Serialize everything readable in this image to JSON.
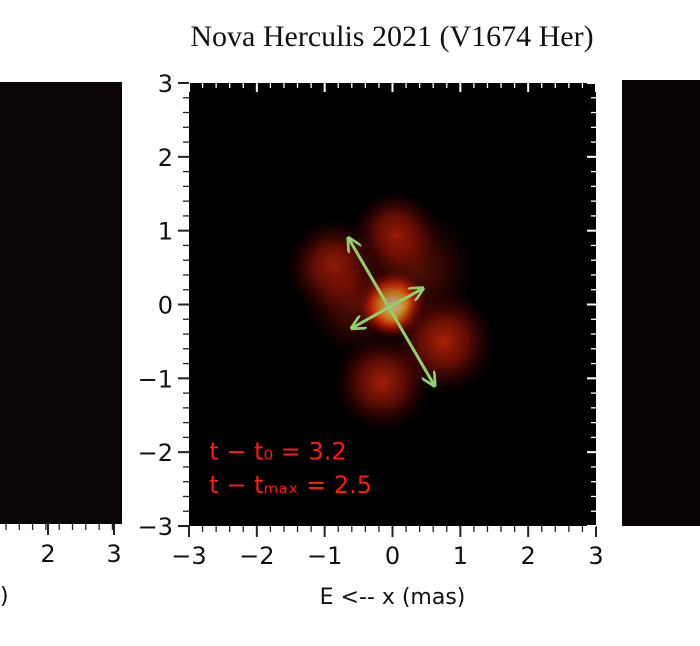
{
  "figure": {
    "title": "Nova Herculis 2021 (V1674 Her)"
  },
  "left_panel": {
    "xticks_visible": [
      "2",
      "3"
    ],
    "xlabel_fragment": ")"
  },
  "chart_data": {
    "type": "heatmap",
    "title": "Nova Herculis 2021 (V1674 Her)",
    "xlabel": "E <-- x (mas)",
    "ylabel": "",
    "xlim": [
      -3,
      3
    ],
    "ylim": [
      -3,
      3
    ],
    "xticks": [
      -3,
      -2,
      -1,
      0,
      1,
      2,
      3
    ],
    "yticks": [
      -3,
      -2,
      -1,
      0,
      1,
      2,
      3
    ],
    "xtick_labels": [
      "−3",
      "−2",
      "−1",
      "0",
      "1",
      "2",
      "3"
    ],
    "ytick_labels": [
      "−3",
      "−2",
      "−1",
      "0",
      "1",
      "2",
      "3"
    ],
    "colormap": "black-red-yellow-white",
    "background_color": "#000000",
    "blobs": [
      {
        "x": 0.0,
        "y": 0.0,
        "sigma": 0.2,
        "intensity": 1.0
      },
      {
        "x": 0.05,
        "y": 0.95,
        "sigma": 0.25,
        "intensity": 0.42
      },
      {
        "x": -0.85,
        "y": 0.5,
        "sigma": 0.28,
        "intensity": 0.4
      },
      {
        "x": 0.75,
        "y": -0.5,
        "sigma": 0.3,
        "intensity": 0.42
      },
      {
        "x": -0.15,
        "y": -1.05,
        "sigma": 0.28,
        "intensity": 0.4
      },
      {
        "x": 0.35,
        "y": 0.5,
        "sigma": 0.35,
        "intensity": 0.2
      },
      {
        "x": -0.55,
        "y": 0.0,
        "sigma": 0.3,
        "intensity": 0.2
      }
    ],
    "arrows": [
      {
        "x1": -0.65,
        "y1": 0.9,
        "x2": 0.62,
        "y2": -1.1,
        "color": "#8fd16a"
      },
      {
        "x1": -0.6,
        "y1": -0.32,
        "x2": 0.45,
        "y2": 0.22,
        "color": "#8fd16a"
      }
    ],
    "annotations": [
      {
        "text": "t − t₀ = 3.2",
        "x": -2.7,
        "y": -2.1
      },
      {
        "text": "t − tₘₐₓ = 2.5",
        "x": -2.7,
        "y": -2.55
      }
    ],
    "annotation_color": "#ff1a0a",
    "arrow_color": "#8fd16a"
  }
}
